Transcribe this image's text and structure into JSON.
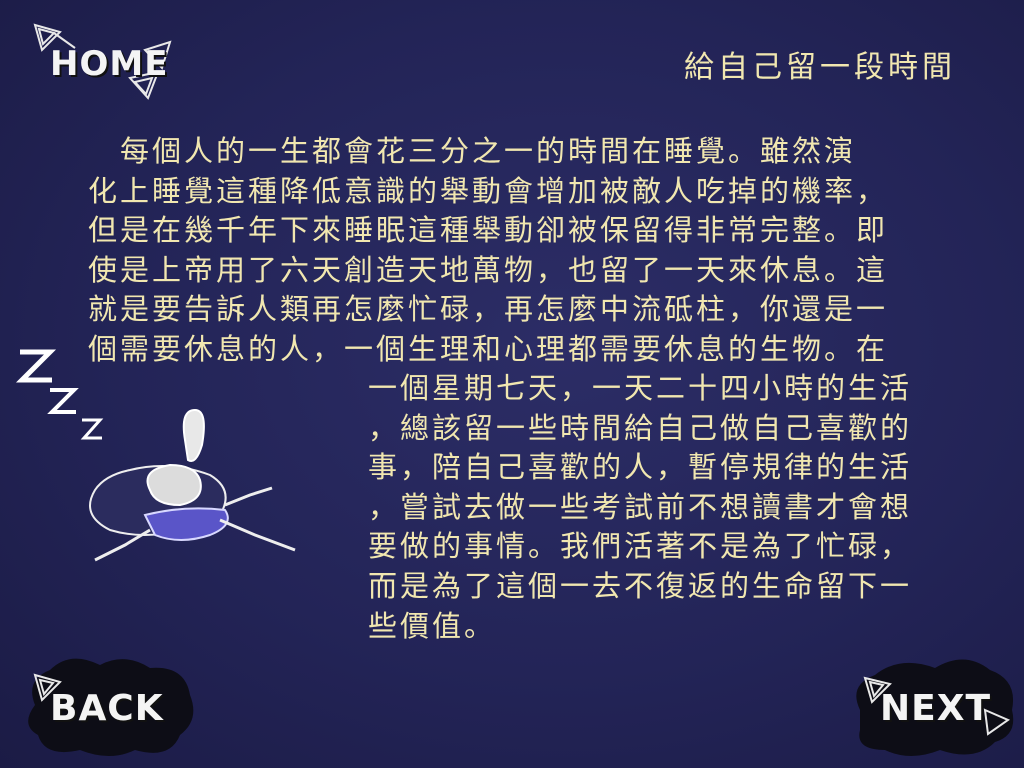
{
  "nav": {
    "home_label": "HOME",
    "back_label": "BACK",
    "next_label": "NEXT"
  },
  "page": {
    "title": "給自己留一段時間"
  },
  "body": {
    "lines_top": [
      "　每個人的一生都會花三分之一的時間在睡覺。雖然演",
      "化上睡覺這種降低意識的舉動會增加被敵人吃掉的機率，",
      "但是在幾千年下來睡眠這種舉動卻被保留得非常完整。即",
      "使是上帝用了六天創造天地萬物，也留了一天來休息。這",
      "就是要告訴人類再怎麼忙碌，再怎麼中流砥柱，你還是一",
      "個需要休息的人，一個生理和心理都需要休息的生物。在"
    ],
    "lines_bottom": [
      "一個星期七天，一天二十四小時的生活",
      "，總該留一些時間給自己做自己喜歡的",
      "事，陪自己喜歡的人，暫停規律的生活",
      "，嘗試去做一些考試前不想讀書才會想",
      "要做的事情。我們活著不是為了忙碌，",
      "而是為了這個一去不復返的生命留下一",
      "些價值。"
    ]
  },
  "illustration": {
    "snore_text": "ZZZ"
  },
  "colors": {
    "background": "#25265a",
    "text": "#f1e7b0",
    "nav_text": "#f4f4f4",
    "shirt": "#5a55c8"
  }
}
